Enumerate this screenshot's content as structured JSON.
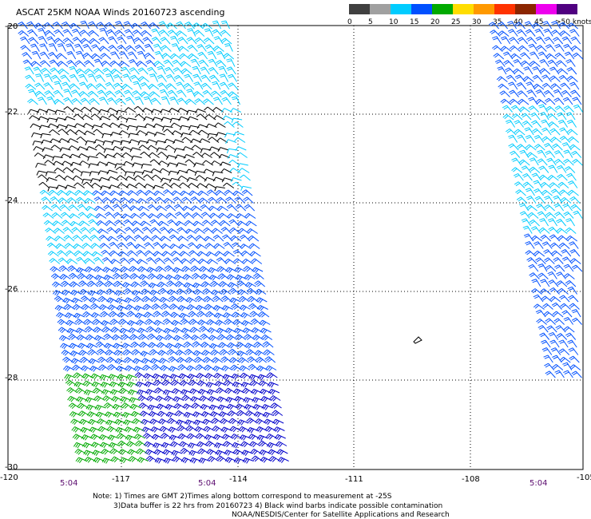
{
  "title": "ASCAT 25KM NOAA Winds 20160723 ascending",
  "legend": {
    "labels": [
      "0",
      "5",
      "10",
      "15",
      "20",
      "25",
      "30",
      "35",
      "40",
      "45",
      ">50 knots"
    ],
    "colors": [
      "#404040",
      "#a0a0a0",
      "#00ccff",
      "#0050ff",
      "#00aa00",
      "#ffdd00",
      "#ff9900",
      "#ff3300",
      "#8b2500",
      "#ee00ee",
      "#500080"
    ]
  },
  "map": {
    "lon_labels": [
      "-120",
      "-117",
      "-114",
      "-111",
      "-108",
      "-105"
    ],
    "lat_labels": [
      "-20",
      "-22",
      "-24",
      "-26",
      "-28",
      "-30"
    ],
    "pass_times": [
      "5:04",
      "5:04",
      "5:04"
    ]
  },
  "notes": [
    "Note: 1) Times are GMT 2)Times along bottom correspond to measurement at -25S",
    "3)Data buffer is 22 hrs from 20160723 4) Black wind barbs indicate possible contamination",
    "NOAA/NESDIS/Center for Satellite Applications and Research"
  ],
  "wind_colors": {
    "contaminated": "#000000",
    "light_blue": "#00ccff",
    "blue": "#0050ff",
    "dark_blue": "#0000cc",
    "green": "#00aa00"
  }
}
